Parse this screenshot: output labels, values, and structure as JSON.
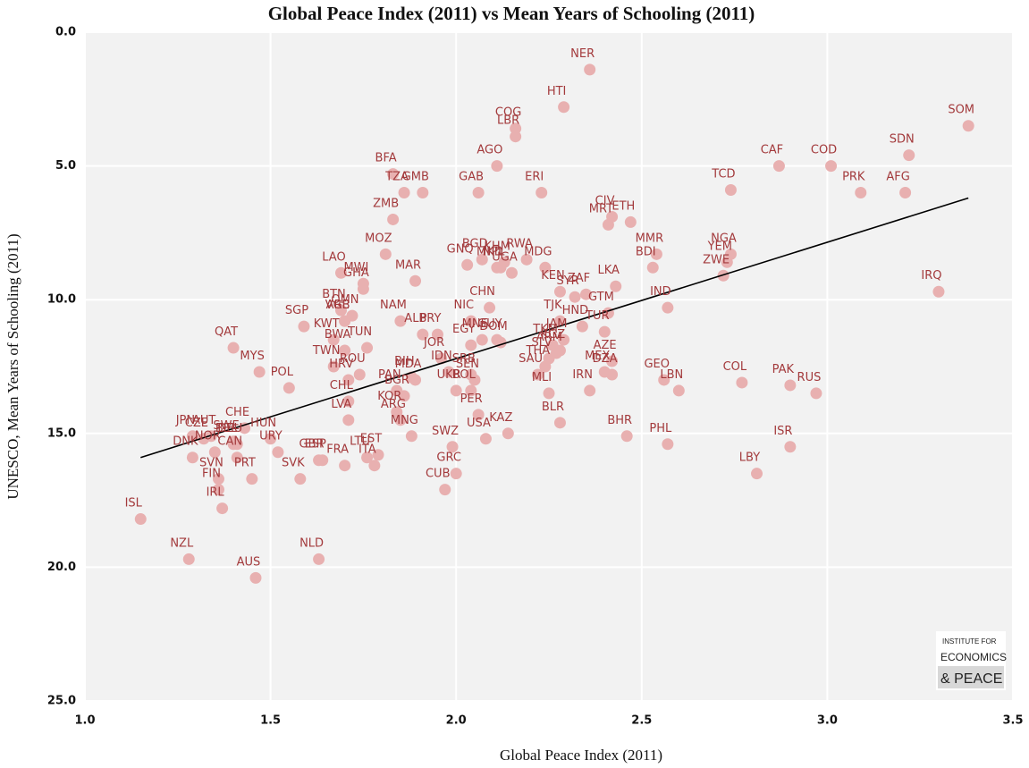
{
  "chart_data": {
    "type": "scatter",
    "title": "Global Peace Index (2011) vs Mean Years of Schooling (2011)",
    "x_label": "Global Peace Index (2011)",
    "y_label": "UNESCO, Mean Years of Schooling (2011)",
    "logo": [
      "INSTITUTE FOR",
      "ECONOMICS",
      "& PEACE"
    ],
    "xlim": [
      1.0,
      3.5
    ],
    "ylim": [
      25.0,
      0.0
    ],
    "y_inverted": true,
    "xticks": [
      {
        "value": 1.0,
        "label": "1.0"
      },
      {
        "value": 1.5,
        "label": "1.5"
      },
      {
        "value": 2.0,
        "label": "2.0"
      },
      {
        "value": 2.5,
        "label": "2.5"
      },
      {
        "value": 3.0,
        "label": "3.0"
      },
      {
        "value": 3.5,
        "label": "3.5"
      }
    ],
    "yticks": [
      {
        "value": 0,
        "label": "0.0"
      },
      {
        "value": 5,
        "label": "5.0"
      },
      {
        "value": 10,
        "label": "10.0"
      },
      {
        "value": 15,
        "label": "15.0"
      },
      {
        "value": 20,
        "label": "20.0"
      },
      {
        "value": 25,
        "label": "25.0"
      }
    ],
    "grid": true,
    "color": "#e8b0b0",
    "label_color": "#a33a3c",
    "trendline": {
      "x": [
        1.15,
        3.38
      ],
      "y": [
        15.9,
        6.2
      ],
      "color": "#000000"
    },
    "labels": [
      "NER",
      "HTI",
      "COG",
      "LBR",
      "AGO",
      "GAB",
      "ERI",
      "BFA",
      "TZA",
      "GMB",
      "ZMB",
      "MOZ",
      "MAR",
      "LAO",
      "MWI",
      "GHA",
      "BTN",
      "VGB",
      "SGP",
      "NAM",
      "ALB",
      "QAT",
      "MYS",
      "POL",
      "ARE",
      "OMN",
      "BWA",
      "TUN",
      "KWT",
      "TWN",
      "HRV",
      "ROU",
      "CHL",
      "PAN",
      "BGR",
      "MDA",
      "BIH",
      "KOR",
      "MNG",
      "LVA",
      "ARG",
      "CHE",
      "JPN",
      "AUT",
      "CZE",
      "SWE",
      "BEL",
      "DEU",
      "HUN",
      "URY",
      "DNK",
      "NOR",
      "FIN",
      "SVN",
      "CAN",
      "PRT",
      "IRL",
      "ISL",
      "NZL",
      "AUS",
      "NLD",
      "SVK",
      "GBR",
      "ESP",
      "FRA",
      "LTU",
      "EST",
      "ITA",
      "GRC",
      "CUB",
      "SWZ",
      "USA",
      "PER",
      "KAZ",
      "UKR",
      "IDN",
      "JOR",
      "EGY",
      "SRB",
      "SEN",
      "BOL",
      "PRY",
      "MNE",
      "GUY",
      "DOM",
      "CHN",
      "NIC",
      "MKD",
      "UGA",
      "GNQ",
      "BGD",
      "KHM",
      "RWA",
      "NPL",
      "MDG",
      "KEN",
      "ZAF",
      "SYR",
      "LKA",
      "GTM",
      "TJK",
      "JAM",
      "TUR",
      "HND",
      "ARM",
      "TKM",
      "KGZ",
      "SLV",
      "SAU",
      "THA",
      "AZE",
      "DZA",
      "MEX",
      "IRN",
      "MLI",
      "BLR",
      "BHR",
      "CIV",
      "MRT",
      "ETH",
      "MMR",
      "BDI",
      "YEM",
      "NGA",
      "ZWE",
      "IND",
      "TCD",
      "CAF",
      "COD",
      "PRK",
      "SDN",
      "AFG",
      "SOM",
      "IRQ",
      "GEO",
      "LBN",
      "COL",
      "PAK",
      "RUS",
      "ISR",
      "LBY",
      "PHL"
    ],
    "x": [
      2.36,
      2.29,
      2.16,
      2.16,
      2.11,
      2.06,
      2.23,
      1.83,
      1.86,
      1.91,
      1.83,
      1.81,
      1.89,
      1.69,
      1.75,
      1.75,
      1.69,
      1.7,
      1.59,
      1.85,
      1.91,
      1.4,
      1.47,
      1.55,
      1.7,
      1.72,
      1.7,
      1.76,
      1.67,
      1.67,
      1.71,
      1.74,
      1.71,
      1.84,
      1.86,
      1.89,
      1.88,
      1.84,
      1.88,
      1.71,
      1.85,
      1.43,
      1.29,
      1.34,
      1.32,
      1.4,
      1.4,
      1.41,
      1.5,
      1.52,
      1.29,
      1.35,
      1.36,
      1.36,
      1.41,
      1.45,
      1.37,
      1.15,
      1.28,
      1.46,
      1.63,
      1.58,
      1.63,
      1.64,
      1.7,
      1.76,
      1.79,
      1.78,
      2.0,
      1.97,
      1.99,
      2.08,
      2.06,
      2.14,
      2.0,
      1.98,
      1.96,
      2.04,
      2.04,
      2.05,
      2.04,
      1.95,
      2.07,
      2.11,
      2.12,
      2.09,
      2.04,
      2.11,
      2.15,
      2.03,
      2.07,
      2.13,
      2.19,
      2.12,
      2.24,
      2.28,
      2.35,
      2.32,
      2.43,
      2.41,
      2.28,
      2.29,
      2.4,
      2.34,
      2.27,
      2.26,
      2.28,
      2.25,
      2.22,
      2.24,
      2.42,
      2.42,
      2.4,
      2.36,
      2.25,
      2.28,
      2.46,
      2.42,
      2.41,
      2.47,
      2.54,
      2.53,
      2.73,
      2.74,
      2.72,
      2.57,
      2.74,
      2.87,
      3.01,
      3.09,
      3.22,
      3.21,
      3.38,
      3.3,
      2.56,
      2.6,
      2.77,
      2.9,
      2.97,
      2.9,
      2.81,
      2.57
    ],
    "y": [
      1.4,
      2.8,
      3.6,
      3.9,
      5.0,
      6.0,
      6.0,
      5.3,
      6.0,
      6.0,
      7.0,
      8.3,
      9.3,
      9.0,
      9.4,
      9.6,
      10.4,
      10.8,
      11.0,
      10.8,
      11.3,
      11.8,
      12.7,
      13.3,
      10.8,
      10.6,
      11.9,
      11.8,
      11.5,
      12.5,
      13.0,
      12.8,
      13.8,
      13.4,
      13.6,
      13.0,
      12.9,
      14.2,
      15.1,
      14.5,
      14.5,
      14.8,
      15.1,
      15.1,
      15.2,
      15.3,
      15.4,
      15.4,
      15.2,
      15.7,
      15.9,
      15.7,
      17.1,
      16.7,
      15.9,
      16.7,
      17.8,
      18.2,
      19.7,
      20.4,
      19.7,
      16.7,
      16.0,
      16.0,
      16.2,
      15.9,
      15.8,
      16.2,
      16.5,
      17.1,
      15.5,
      15.2,
      14.3,
      15.0,
      13.4,
      12.7,
      12.2,
      11.7,
      12.8,
      13.0,
      13.4,
      11.3,
      11.5,
      11.5,
      11.6,
      10.3,
      10.8,
      8.8,
      9.0,
      8.7,
      8.5,
      8.6,
      8.5,
      8.8,
      8.8,
      9.7,
      9.8,
      9.9,
      9.5,
      10.5,
      10.8,
      11.5,
      11.2,
      11.0,
      12.0,
      11.7,
      11.9,
      12.2,
      12.8,
      12.5,
      12.3,
      12.8,
      12.7,
      13.4,
      13.5,
      14.6,
      15.1,
      6.9,
      7.2,
      7.1,
      8.3,
      8.8,
      8.6,
      8.3,
      9.1,
      10.3,
      5.9,
      5.0,
      5.0,
      6.0,
      4.6,
      6.0,
      3.5,
      9.7,
      13.0,
      13.4,
      13.1,
      13.2,
      13.5,
      15.5,
      16.5,
      15.4
    ]
  }
}
